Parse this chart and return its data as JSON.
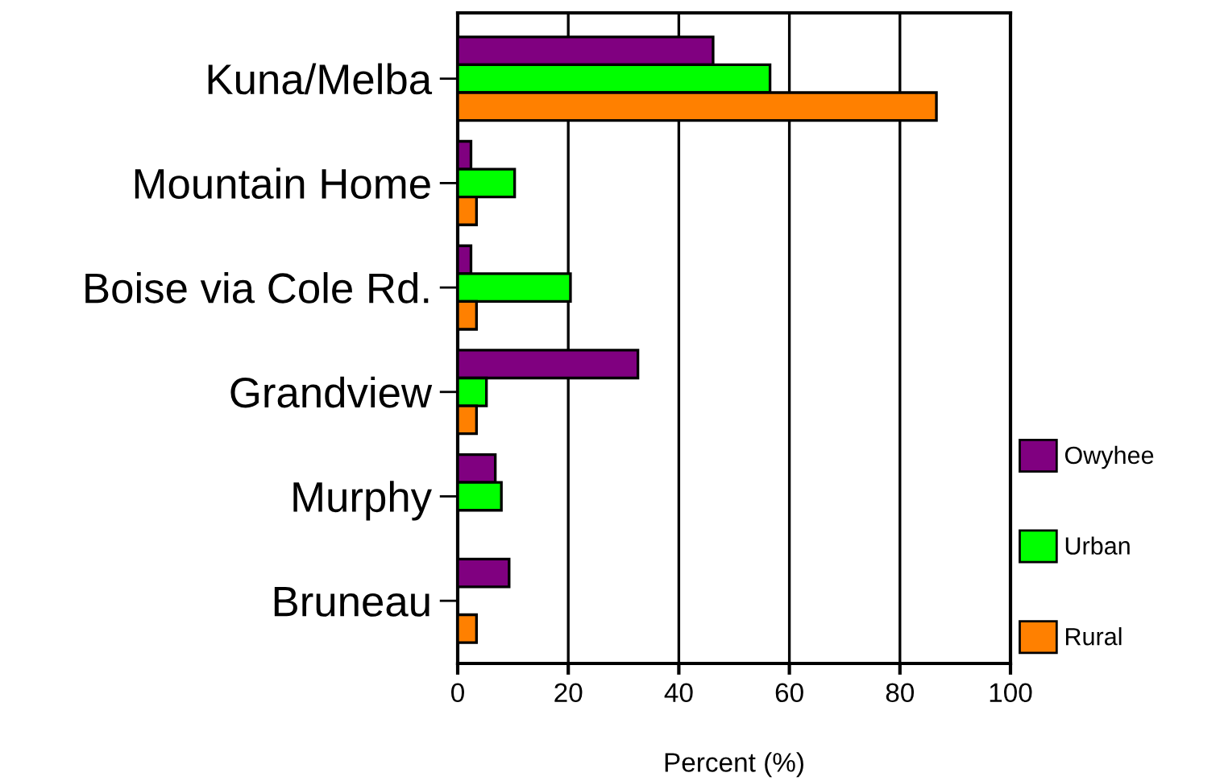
{
  "chart_data": {
    "type": "bar",
    "orientation": "horizontal",
    "xlabel": "Percent (%)",
    "categories": [
      "Kuna/Melba",
      "Mountain Home",
      "Boise via Cole Rd.",
      "Grandview",
      "Murphy",
      "Bruneau"
    ],
    "series": [
      {
        "name": "Owyhee",
        "color": "#800080",
        "values": [
          46.2,
          2.4,
          2.4,
          32.6,
          6.8,
          9.3
        ]
      },
      {
        "name": "Urban",
        "color": "#00ff00",
        "values": [
          56.5,
          10.3,
          20.4,
          5.2,
          7.9,
          null
        ]
      },
      {
        "name": "Rural",
        "color": "#ff8000",
        "values": [
          86.6,
          3.4,
          3.4,
          3.4,
          null,
          3.4
        ]
      }
    ],
    "xlim": [
      0,
      100
    ],
    "xticks": [
      0,
      20,
      40,
      60,
      80,
      100
    ],
    "grid": "x",
    "legend": "right"
  }
}
